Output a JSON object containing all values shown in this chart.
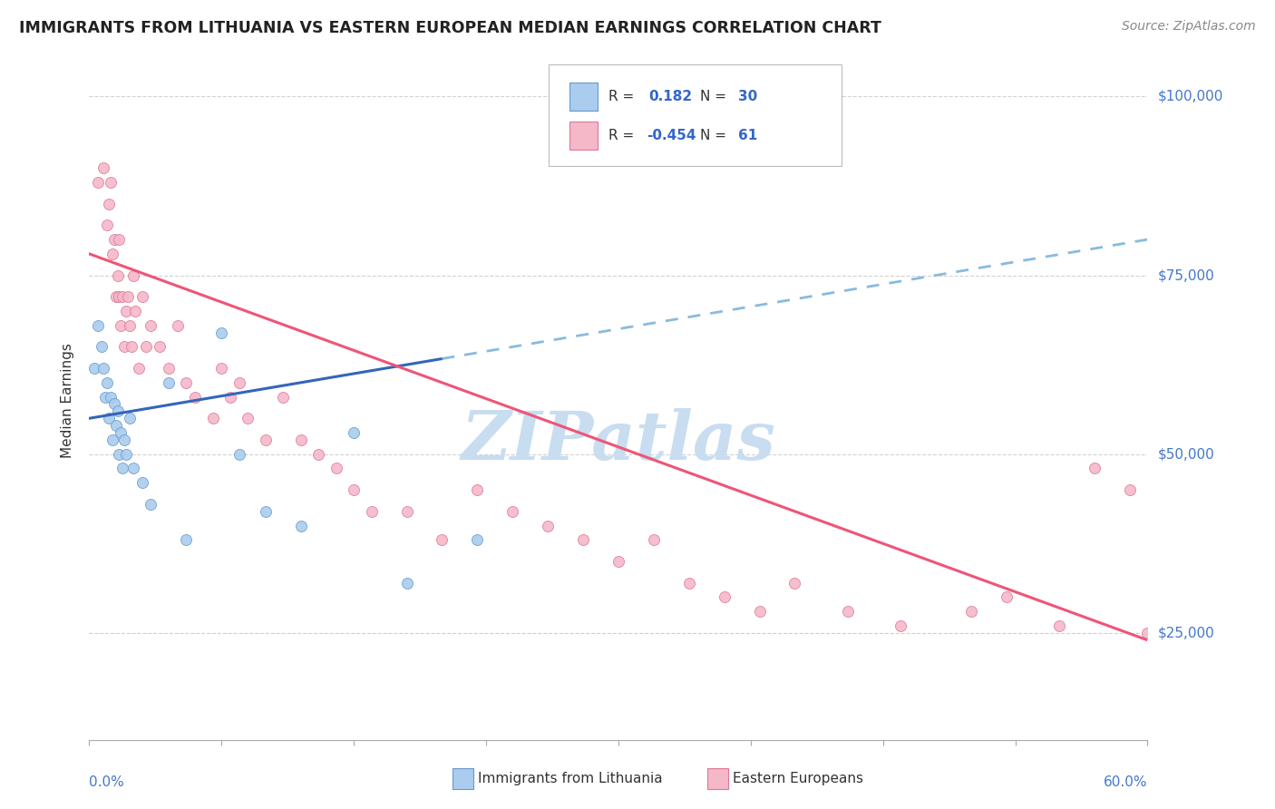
{
  "title": "IMMIGRANTS FROM LITHUANIA VS EASTERN EUROPEAN MEDIAN EARNINGS CORRELATION CHART",
  "source": "Source: ZipAtlas.com",
  "ylabel": "Median Earnings",
  "y_ticks": [
    25000,
    50000,
    75000,
    100000
  ],
  "xmin": 0.0,
  "xmax": 60.0,
  "ymin": 10000,
  "ymax": 105000,
  "series1_label": "Immigrants from Lithuania",
  "series1_color": "#aaccee",
  "series1_edge": "#6699cc",
  "series1_R": 0.182,
  "series1_N": 30,
  "series1_line_color": "#3366bb",
  "series1_line_y0": 55000,
  "series1_line_y60": 80000,
  "series2_label": "Eastern Europeans",
  "series2_color": "#f5b8c8",
  "series2_edge": "#dd7799",
  "series2_R": -0.454,
  "series2_N": 61,
  "series2_line_color": "#ee5577",
  "series2_line_y0": 78000,
  "series2_line_y60": 24000,
  "watermark": "ZIPatlas",
  "watermark_color": "#c8ddf0",
  "background_color": "#ffffff",
  "grid_color": "#cccccc",
  "series1_x": [
    0.3,
    0.5,
    0.7,
    0.8,
    0.9,
    1.0,
    1.1,
    1.2,
    1.3,
    1.4,
    1.5,
    1.6,
    1.7,
    1.8,
    1.9,
    2.0,
    2.1,
    2.3,
    2.5,
    3.0,
    3.5,
    4.5,
    5.5,
    7.5,
    8.5,
    10.0,
    12.0,
    15.0,
    18.0,
    22.0
  ],
  "series1_y": [
    62000,
    68000,
    65000,
    62000,
    58000,
    60000,
    55000,
    58000,
    52000,
    57000,
    54000,
    56000,
    50000,
    53000,
    48000,
    52000,
    50000,
    55000,
    48000,
    46000,
    43000,
    60000,
    38000,
    67000,
    50000,
    42000,
    40000,
    53000,
    32000,
    38000
  ],
  "series2_x": [
    0.5,
    0.8,
    1.0,
    1.1,
    1.2,
    1.3,
    1.4,
    1.5,
    1.6,
    1.7,
    1.7,
    1.8,
    1.9,
    2.0,
    2.1,
    2.2,
    2.3,
    2.4,
    2.5,
    2.6,
    2.8,
    3.0,
    3.2,
    3.5,
    4.0,
    4.5,
    5.0,
    5.5,
    6.0,
    7.0,
    7.5,
    8.0,
    8.5,
    9.0,
    10.0,
    11.0,
    12.0,
    13.0,
    14.0,
    15.0,
    16.0,
    18.0,
    20.0,
    22.0,
    24.0,
    26.0,
    28.0,
    30.0,
    32.0,
    34.0,
    36.0,
    38.0,
    40.0,
    43.0,
    46.0,
    50.0,
    52.0,
    55.0,
    57.0,
    59.0,
    60.0
  ],
  "series2_y": [
    88000,
    90000,
    82000,
    85000,
    88000,
    78000,
    80000,
    72000,
    75000,
    72000,
    80000,
    68000,
    72000,
    65000,
    70000,
    72000,
    68000,
    65000,
    75000,
    70000,
    62000,
    72000,
    65000,
    68000,
    65000,
    62000,
    68000,
    60000,
    58000,
    55000,
    62000,
    58000,
    60000,
    55000,
    52000,
    58000,
    52000,
    50000,
    48000,
    45000,
    42000,
    42000,
    38000,
    45000,
    42000,
    40000,
    38000,
    35000,
    38000,
    32000,
    30000,
    28000,
    32000,
    28000,
    26000,
    28000,
    30000,
    26000,
    48000,
    45000,
    25000
  ]
}
